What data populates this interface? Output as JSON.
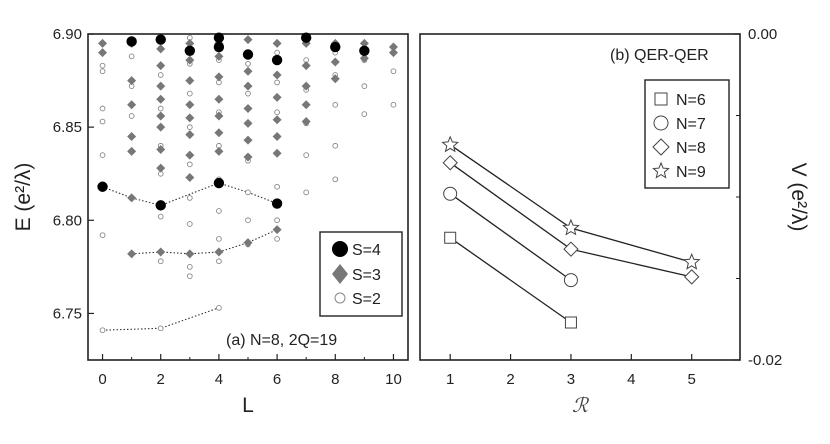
{
  "chart_data": [
    {
      "type": "scatter",
      "panel": "(a)",
      "annotation": "(a) N=8, 2Q=19",
      "xlabel": "L",
      "ylabel": "E (e²/λ)",
      "xlim": [
        -0.5,
        10.5
      ],
      "ylim": [
        6.725,
        6.9
      ],
      "xticks": [
        "0",
        "2",
        "4",
        "6",
        "8",
        "10"
      ],
      "yticks": [
        "6.75",
        "6.80",
        "6.85",
        "6.90"
      ],
      "legend_position": "lower-right",
      "series": [
        {
          "name": "S=4",
          "marker": "filled-circle",
          "color": "#000000",
          "points": [
            [
              0,
              6.818
            ],
            [
              1,
              6.896
            ],
            [
              2,
              6.897
            ],
            [
              2,
              6.808
            ],
            [
              3,
              6.891
            ],
            [
              4,
              6.893
            ],
            [
              4,
              6.82
            ],
            [
              4,
              6.898
            ],
            [
              5,
              6.889
            ],
            [
              6,
              6.886
            ],
            [
              6,
              6.809
            ],
            [
              7,
              6.898
            ],
            [
              8,
              6.893
            ],
            [
              9,
              6.891
            ]
          ]
        },
        {
          "name": "S=3",
          "marker": "filled-diamond",
          "color": "#777777",
          "points": [
            [
              0,
              6.895
            ],
            [
              0,
              6.89
            ],
            [
              1,
              6.812
            ],
            [
              1,
              6.782
            ],
            [
              1,
              6.895
            ],
            [
              1,
              6.875
            ],
            [
              1,
              6.862
            ],
            [
              1,
              6.845
            ],
            [
              1,
              6.837
            ],
            [
              2,
              6.783
            ],
            [
              2,
              6.892
            ],
            [
              2,
              6.883
            ],
            [
              2,
              6.872
            ],
            [
              2,
              6.865
            ],
            [
              2,
              6.856
            ],
            [
              2,
              6.85
            ],
            [
              2,
              6.838
            ],
            [
              2,
              6.828
            ],
            [
              3,
              6.782
            ],
            [
              3,
              6.895
            ],
            [
              3,
              6.886
            ],
            [
              3,
              6.875
            ],
            [
              3,
              6.862
            ],
            [
              3,
              6.855
            ],
            [
              3,
              6.846
            ],
            [
              3,
              6.835
            ],
            [
              3,
              6.823
            ],
            [
              4,
              6.783
            ],
            [
              4,
              6.895
            ],
            [
              4,
              6.888
            ],
            [
              4,
              6.877
            ],
            [
              4,
              6.865
            ],
            [
              4,
              6.856
            ],
            [
              4,
              6.847
            ],
            [
              4,
              6.837
            ],
            [
              5,
              6.788
            ],
            [
              5,
              6.897
            ],
            [
              5,
              6.88
            ],
            [
              5,
              6.872
            ],
            [
              5,
              6.86
            ],
            [
              5,
              6.852
            ],
            [
              5,
              6.843
            ],
            [
              5,
              6.834
            ],
            [
              6,
              6.795
            ],
            [
              6,
              6.895
            ],
            [
              6,
              6.878
            ],
            [
              6,
              6.866
            ],
            [
              6,
              6.854
            ],
            [
              6,
              6.845
            ],
            [
              6,
              6.836
            ],
            [
              7,
              6.895
            ],
            [
              7,
              6.883
            ],
            [
              7,
              6.872
            ],
            [
              7,
              6.862
            ],
            [
              7,
              6.853
            ],
            [
              8,
              6.895
            ],
            [
              8,
              6.885
            ],
            [
              8,
              6.876
            ],
            [
              9,
              6.895
            ],
            [
              9,
              6.887
            ],
            [
              10,
              6.893
            ],
            [
              10,
              6.89
            ]
          ]
        },
        {
          "name": "S=2",
          "marker": "open-circle",
          "color": "#888888",
          "points": [
            [
              0,
              6.741
            ],
            [
              0,
              6.792
            ],
            [
              0,
              6.835
            ],
            [
              0,
              6.853
            ],
            [
              0,
              6.86
            ],
            [
              0,
              6.88
            ],
            [
              0,
              6.883
            ],
            [
              0,
              6.895
            ],
            [
              1,
              6.888
            ],
            [
              1,
              6.872
            ],
            [
              1,
              6.856
            ],
            [
              2,
              6.742
            ],
            [
              2,
              6.778
            ],
            [
              2,
              6.802
            ],
            [
              2,
              6.825
            ],
            [
              2,
              6.84
            ],
            [
              2,
              6.86
            ],
            [
              2,
              6.878
            ],
            [
              3,
              6.77
            ],
            [
              3,
              6.775
            ],
            [
              3,
              6.798
            ],
            [
              3,
              6.812
            ],
            [
              3,
              6.83
            ],
            [
              3,
              6.85
            ],
            [
              3,
              6.868
            ],
            [
              3,
              6.884
            ],
            [
              3,
              6.898
            ],
            [
              4,
              6.753
            ],
            [
              4,
              6.778
            ],
            [
              4,
              6.79
            ],
            [
              4,
              6.805
            ],
            [
              4,
              6.822
            ],
            [
              4,
              6.84
            ],
            [
              4,
              6.858
            ],
            [
              4,
              6.874
            ],
            [
              4,
              6.886
            ],
            [
              5,
              6.787
            ],
            [
              5,
              6.8
            ],
            [
              5,
              6.815
            ],
            [
              5,
              6.832
            ],
            [
              5,
              6.852
            ],
            [
              5,
              6.868
            ],
            [
              5,
              6.884
            ],
            [
              6,
              6.79
            ],
            [
              6,
              6.8
            ],
            [
              6,
              6.818
            ],
            [
              6,
              6.836
            ],
            [
              6,
              6.858
            ],
            [
              6,
              6.874
            ],
            [
              6,
              6.89
            ],
            [
              7,
              6.815
            ],
            [
              7,
              6.835
            ],
            [
              7,
              6.852
            ],
            [
              7,
              6.87
            ],
            [
              7,
              6.886
            ],
            [
              8,
              6.822
            ],
            [
              8,
              6.84
            ],
            [
              8,
              6.862
            ],
            [
              8,
              6.878
            ],
            [
              8,
              6.89
            ],
            [
              9,
              6.857
            ],
            [
              9,
              6.872
            ],
            [
              9,
              6.886
            ],
            [
              10,
              6.862
            ],
            [
              10,
              6.88
            ]
          ]
        }
      ],
      "dotted_lines": [
        [
          [
            0,
            6.818
          ],
          [
            1,
            6.812
          ],
          [
            2,
            6.808
          ],
          [
            3,
            6.814
          ],
          [
            4,
            6.82
          ],
          [
            5,
            6.815
          ],
          [
            6,
            6.809
          ]
        ],
        [
          [
            1,
            6.782
          ],
          [
            2,
            6.783
          ],
          [
            3,
            6.782
          ],
          [
            4,
            6.783
          ],
          [
            5,
            6.788
          ],
          [
            6,
            6.795
          ]
        ],
        [
          [
            0,
            6.741
          ],
          [
            2,
            6.742
          ],
          [
            4,
            6.753
          ]
        ]
      ]
    },
    {
      "type": "line",
      "panel": "(b)",
      "annotation": "(b) QER-QER",
      "xlabel": "ℛ",
      "ylabel": "V (e²/λ)",
      "xlim": [
        0.5,
        5.8
      ],
      "ylim": [
        -0.02,
        0.0
      ],
      "xticks": [
        "1",
        "2",
        "3",
        "4",
        "5"
      ],
      "yticks": [
        "0.00",
        "-0.02"
      ],
      "legend_position": "top-right",
      "series": [
        {
          "name": "N=6",
          "marker": "open-square",
          "x": [
            1,
            3
          ],
          "values": [
            -0.0125,
            -0.0177
          ]
        },
        {
          "name": "N=7",
          "marker": "open-circle",
          "x": [
            1,
            3
          ],
          "values": [
            -0.0098,
            -0.0151
          ]
        },
        {
          "name": "N=8",
          "marker": "open-diamond",
          "x": [
            1,
            3,
            5
          ],
          "values": [
            -0.0079,
            -0.0132,
            -0.0149
          ]
        },
        {
          "name": "N=9",
          "marker": "open-star",
          "x": [
            1,
            3,
            5
          ],
          "values": [
            -0.0068,
            -0.0119,
            -0.014
          ]
        }
      ]
    }
  ]
}
